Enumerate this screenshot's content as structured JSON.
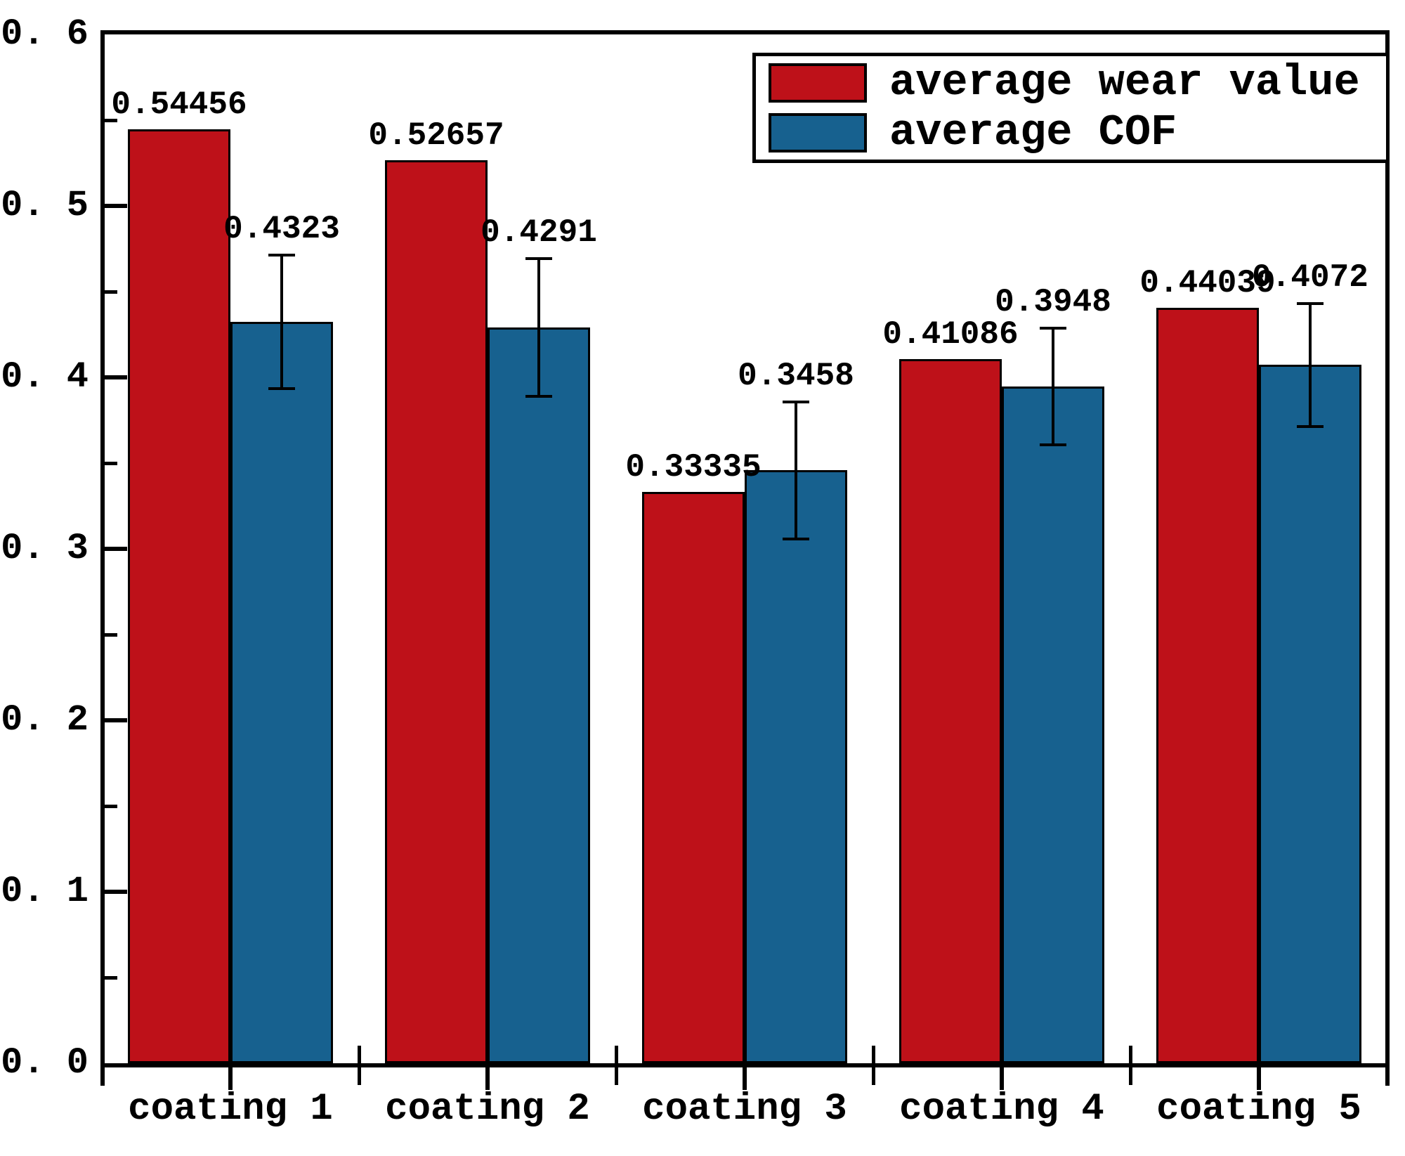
{
  "chart_data": {
    "type": "bar",
    "title": "",
    "xlabel": "",
    "ylabel": "",
    "categories": [
      "coating 1",
      "coating 2",
      "coating 3",
      "coating 4",
      "coating 5"
    ],
    "series": [
      {
        "name": "average wear value",
        "color": "#BE1119",
        "values": [
          0.54456,
          0.52657,
          0.33335,
          0.41086,
          0.44039
        ],
        "value_labels": [
          "0.54456",
          "0.52657",
          "0.33335",
          "0.41086",
          "0.44039"
        ]
      },
      {
        "name": "average COF",
        "color": "#17618F",
        "values": [
          0.4323,
          0.4291,
          0.3458,
          0.3948,
          0.4072
        ],
        "value_labels": [
          "0.4323",
          "0.4291",
          "0.3458",
          "0.3948",
          "0.4072"
        ],
        "errors": [
          0.039,
          0.04,
          0.04,
          0.034,
          0.036
        ]
      }
    ],
    "ylim": [
      0,
      0.6
    ],
    "y_major_ticks": [
      0.0,
      0.1,
      0.2,
      0.3,
      0.4,
      0.5,
      0.6
    ],
    "y_tick_labels": [
      "0. 0",
      "0. 1",
      "0. 2",
      "0. 3",
      "0. 4",
      "0. 5",
      "0. 6"
    ],
    "y_minor_tick_step": 0.05,
    "grid": false,
    "legend_position": "top-right",
    "bar_outline_color": "#000000",
    "error_bar_color": "#000000",
    "axis_color": "#000000",
    "text_color": "#000000",
    "background_color": "#FFFFFF"
  },
  "legend": {
    "items": [
      {
        "label": "average wear value",
        "color": "#BE1119"
      },
      {
        "label": "average COF",
        "color": "#17618F"
      }
    ]
  }
}
